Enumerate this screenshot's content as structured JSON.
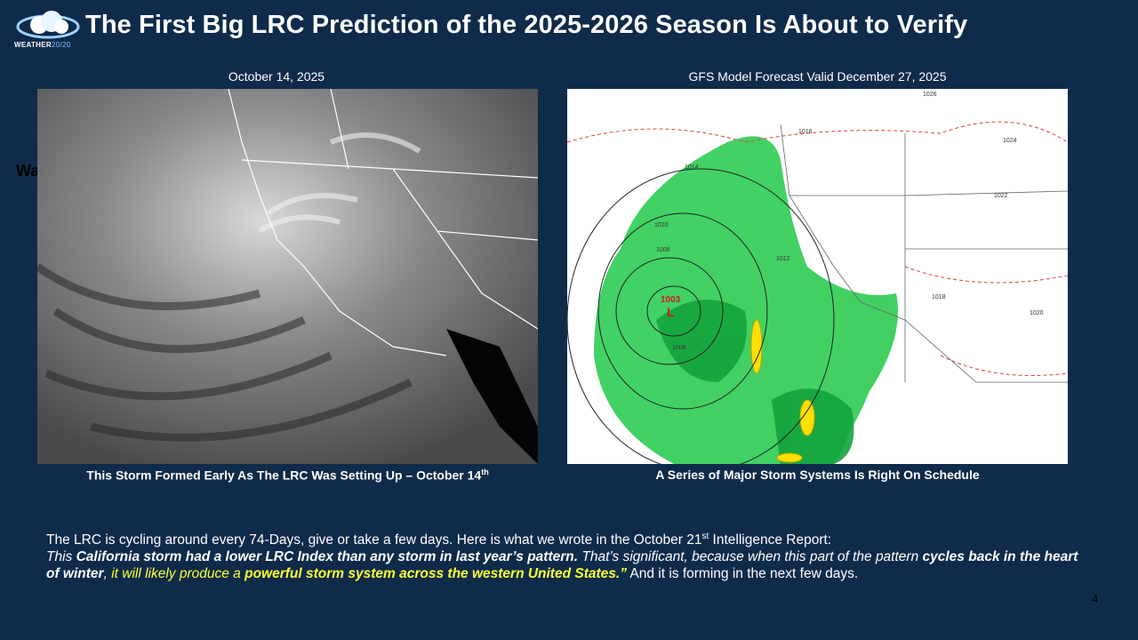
{
  "header": {
    "logo_text_main": "WEATHER",
    "logo_text_accent": "20/20",
    "title": "The First Big LRC Prediction of the 2025-2026 Season Is About to Verify",
    "stray_text": "Wa"
  },
  "left_panel": {
    "date_label": "October 14, 2025",
    "caption_main": "This Storm Formed Early As The LRC Was Setting Up – October 14",
    "caption_sup": "th"
  },
  "right_panel": {
    "date_label": "GFS Model Forecast Valid December 27, 2025",
    "caption": "A Series of Major Storm Systems Is Right On Schedule",
    "low_pressure_value": "1003",
    "low_label": "L",
    "isobar_labels": [
      "1026",
      "1024",
      "1022",
      "1020",
      "1018",
      "1016",
      "1014",
      "1012",
      "1010",
      "1008",
      "1006"
    ]
  },
  "body": {
    "line1_a": "The LRC is cycling around every 74-Days, give or take a few days.  Here is what we wrote in the October 21",
    "line1_sup": "st",
    "line1_b": " Intelligence Report:",
    "q1": "This ",
    "q2": "California storm had a lower LRC Index than any storm in last year’s pattern.",
    "q3": " That’s significant, because when this part of the pattern ",
    "q4": "cycles back in the heart of winter",
    "q5": ", ",
    "q6": "it will likely produce a ",
    "q7": "powerful storm system across the western United States.”",
    "tail": "  And it is forming in the next few days."
  },
  "footer": {
    "page_number": "4"
  },
  "colors": {
    "background": "#0f2b4a",
    "highlight_yellow": "#ffff33",
    "precip_green": "#22c55e"
  }
}
